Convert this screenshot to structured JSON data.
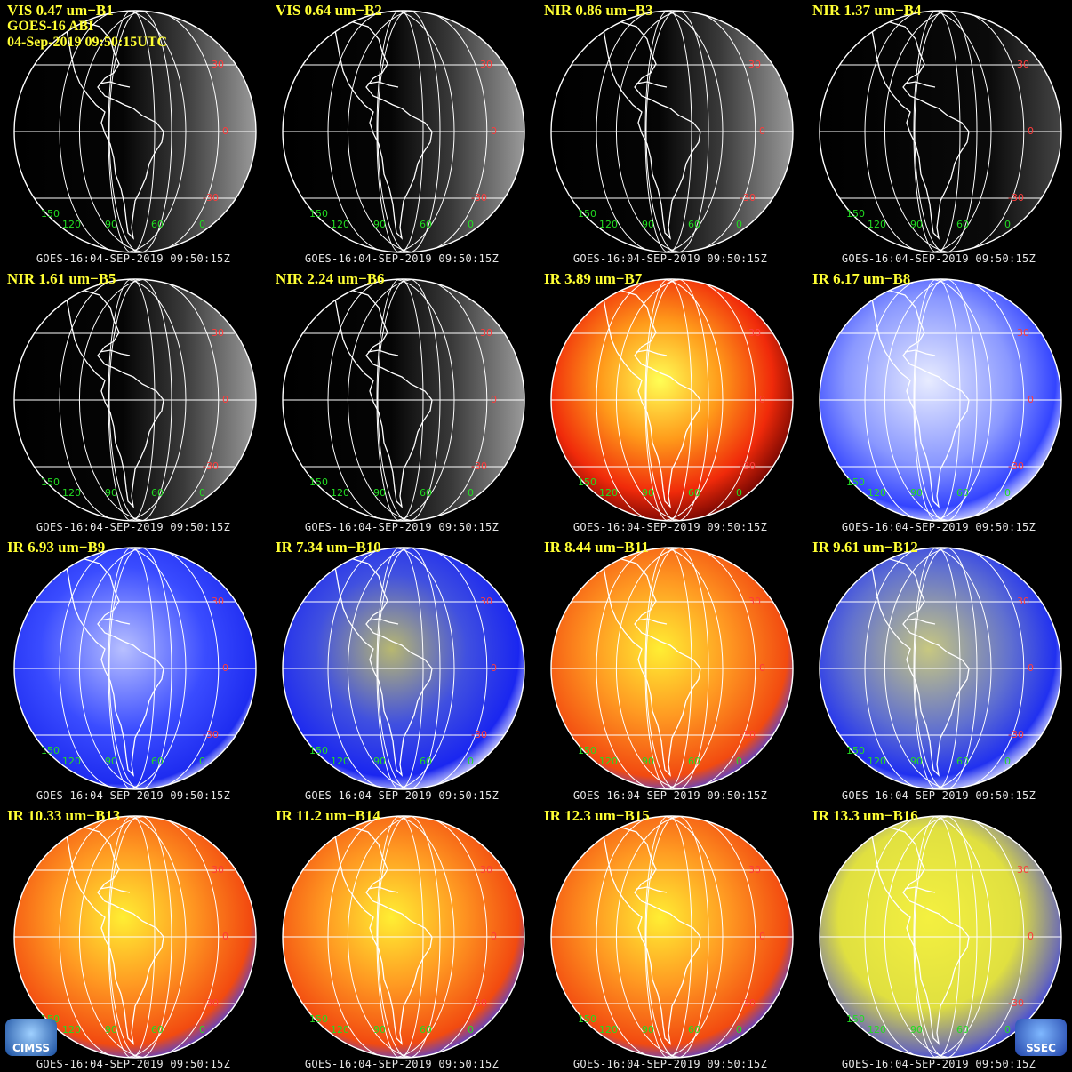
{
  "header": {
    "satellite_line": "GOES-16 ABI",
    "datetime_line": "04-Sep-2019 09:50:15UTC"
  },
  "footer_text": "GOES-16:04-SEP-2019 09:50:15Z",
  "latitude_labels": [
    "30",
    "0",
    "-30"
  ],
  "longitude_labels": [
    "150",
    "120",
    "90",
    "60",
    "0"
  ],
  "logos": {
    "left": "CIMSS",
    "right": "SSEC"
  },
  "colors": {
    "title": "#ffff33",
    "latitude": "#ff3b3b",
    "longitude": "#22dd22",
    "footer": "#e6e6e6"
  },
  "panels": [
    {
      "title": "VIS 0.47 um−B1",
      "style": "vis"
    },
    {
      "title": "VIS 0.64 um−B2",
      "style": "vis"
    },
    {
      "title": "NIR 0.86 um−B3",
      "style": "vis"
    },
    {
      "title": "NIR 1.37 um−B4",
      "style": "visdark"
    },
    {
      "title": "NIR 1.61 um−B5",
      "style": "vis"
    },
    {
      "title": "NIR 2.24 um−B6",
      "style": "vis"
    },
    {
      "title": "IR 3.89 um−B7",
      "style": "irhot"
    },
    {
      "title": "IR 6.17 um−B8",
      "style": "wv1"
    },
    {
      "title": "IR 6.93 um−B9",
      "style": "wv2"
    },
    {
      "title": "IR 7.34 um−B10",
      "style": "wv3"
    },
    {
      "title": "IR 8.44 um−B11",
      "style": "irwarm"
    },
    {
      "title": "IR 9.61 um−B12",
      "style": "wv4"
    },
    {
      "title": "IR 10.33 um−B13",
      "style": "irwarm"
    },
    {
      "title": "IR 11.2 um−B14",
      "style": "irwarm"
    },
    {
      "title": "IR 12.3 um−B15",
      "style": "irwarm"
    },
    {
      "title": "IR 13.3 um−B16",
      "style": "co2"
    }
  ]
}
